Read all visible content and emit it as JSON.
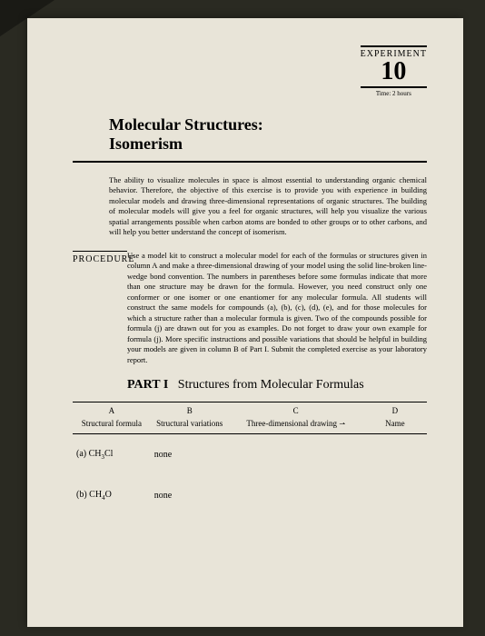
{
  "experiment": {
    "label": "EXPERIMENT",
    "number": "10",
    "time": "Time: 2 hours"
  },
  "title": {
    "line1": "Molecular Structures:",
    "line2": "Isomerism"
  },
  "intro": "The ability to visualize molecules in space is almost essential to understanding organic chemical behavior. Therefore, the objective of this exercise is to provide you with experience in building molecular models and drawing three-dimensional representations of organic structures. The building of molecular models will give you a feel for organic structures, will help you visualize the various spatial arrangements possible when carbon atoms are bonded to other groups or to other carbons, and will help you better understand the concept of isomerism.",
  "procedure": {
    "label": "PROCEDURE",
    "text": "Use a model kit to construct a molecular model for each of the formulas or structures given in column A and make a three-dimensional drawing of your model using the solid line-broken line-wedge bond convention. The numbers in parentheses before some formulas indicate that more than one structure may be drawn for the formula. However, you need construct only one conformer or one isomer or one enantiomer for any molecular formula. All students will construct the same models for compounds (a), (b), (c), (d), (e), and for those molecules for which a structure rather than a molecular formula is given. Two of the compounds possible for formula (j) are drawn out for you as examples. Do not forget to draw your own example for formula (j). More specific instructions and possible variations that should be helpful in building your models are given in column B of Part I. Submit the completed exercise as your laboratory report."
  },
  "part": {
    "label": "PART I",
    "title": "Structures from Molecular Formulas"
  },
  "columns": {
    "a": {
      "letter": "A",
      "label": "Structural formula"
    },
    "b": {
      "letter": "B",
      "label": "Structural variations"
    },
    "c": {
      "letter": "C",
      "label": "Three-dimensional drawing",
      "arrow": "⇀"
    },
    "d": {
      "letter": "D",
      "label": "Name"
    }
  },
  "rows": {
    "a": {
      "id": "(a)",
      "formula_html": "CH₃Cl",
      "variation": "none"
    },
    "b": {
      "id": "(b)",
      "formula_html": "CH₄O",
      "variation": "none"
    }
  }
}
